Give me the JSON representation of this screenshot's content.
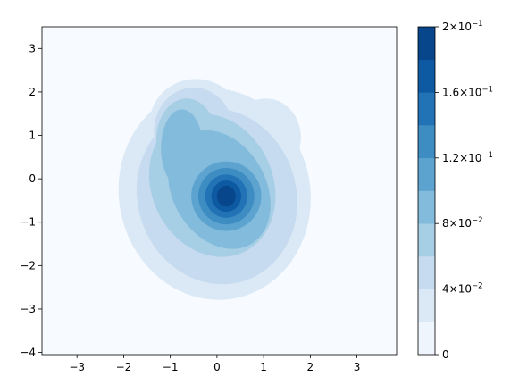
{
  "chart_data": {
    "type": "contour",
    "xlim": [
      -3.75,
      3.85
    ],
    "ylim": [
      -4.05,
      3.5
    ],
    "xticks": [
      -3,
      -2,
      -1,
      0,
      1,
      2,
      3
    ],
    "yticks": [
      -4,
      -3,
      -2,
      -1,
      0,
      1,
      2,
      3
    ],
    "xtick_labels": [
      "−3",
      "−2",
      "−1",
      "0",
      "1",
      "2",
      "3"
    ],
    "ytick_labels": [
      "−4",
      "−3",
      "−2",
      "−1",
      "0",
      "1",
      "2",
      "3"
    ],
    "grid": false,
    "colormap": "Blues",
    "levels": [
      0,
      0.02,
      0.04,
      0.06,
      0.08,
      0.1,
      0.12,
      0.14,
      0.16,
      0.18,
      0.2
    ],
    "level_colors": [
      "#eef5fc",
      "#dbe9f6",
      "#c6dbef",
      "#a6cee4",
      "#82bbdb",
      "#5ca3d0",
      "#3d8dc3",
      "#2272b6",
      "#0d5aa2",
      "#08468b"
    ],
    "density_peak": {
      "x": 0.2,
      "y": -0.4,
      "value": 0.2
    },
    "colorbar": {
      "ticks": [
        0,
        0.04,
        0.08,
        0.12,
        0.16,
        0.2
      ],
      "labels": [
        {
          "mantissa": "0",
          "base": "",
          "exp": ""
        },
        {
          "mantissa": "4",
          "base": "×10",
          "exp": "−2"
        },
        {
          "mantissa": "8",
          "base": "×10",
          "exp": "−2"
        },
        {
          "mantissa": "1.2",
          "base": "×10",
          "exp": "−1"
        },
        {
          "mantissa": "1.6",
          "base": "×10",
          "exp": "−1"
        },
        {
          "mantissa": "2",
          "base": "×10",
          "exp": "−1"
        }
      ]
    }
  }
}
